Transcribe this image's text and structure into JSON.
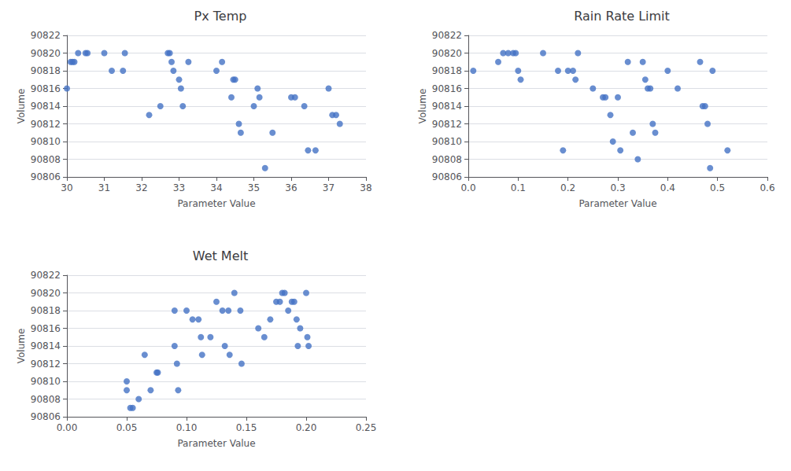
{
  "chart_data": [
    {
      "type": "scatter",
      "title": "Px Temp",
      "xlabel": "Parameter Value",
      "ylabel": "Volume",
      "color": "#4472C4",
      "grid": "y",
      "xlim": [
        30.0,
        38.0
      ],
      "ylim": [
        90806,
        90822
      ],
      "xticks": [
        30,
        31,
        32,
        33,
        34,
        35,
        36,
        37,
        38
      ],
      "yticks": [
        90806,
        90808,
        90810,
        90812,
        90814,
        90816,
        90818,
        90820,
        90822
      ],
      "x": [
        30.0,
        30.1,
        30.15,
        30.2,
        30.3,
        30.5,
        30.55,
        31.0,
        31.2,
        31.5,
        31.55,
        32.2,
        32.5,
        32.7,
        32.75,
        32.8,
        32.85,
        33.0,
        33.05,
        33.1,
        33.25,
        34.0,
        34.15,
        34.4,
        34.45,
        34.5,
        34.6,
        34.65,
        35.0,
        35.1,
        35.15,
        35.3,
        35.5,
        36.0,
        36.1,
        36.35,
        36.45,
        36.65,
        37.0,
        37.1,
        37.2,
        37.3
      ],
      "values": [
        90816,
        90819,
        90819,
        90819,
        90820,
        90820,
        90820,
        90820,
        90818,
        90818,
        90820,
        90813,
        90814,
        90820,
        90820,
        90819,
        90818,
        90817,
        90816,
        90814,
        90819,
        90818,
        90819,
        90815,
        90817,
        90817,
        90812,
        90811,
        90814,
        90816,
        90815,
        90807,
        90811,
        90815,
        90815,
        90814,
        90809,
        90809,
        90816,
        90813,
        90813,
        90812
      ]
    },
    {
      "type": "scatter",
      "title": "Rain Rate Limit",
      "xlabel": "Parameter Value",
      "ylabel": "Volume",
      "color": "#4472C4",
      "grid": "y",
      "xlim": [
        0.0,
        0.6
      ],
      "ylim": [
        90806,
        90822
      ],
      "xticks": [
        {
          "value": 0.0,
          "label": "0.0"
        },
        0.1,
        0.2,
        0.3,
        0.4,
        0.5,
        0.6
      ],
      "yticks": [
        90806,
        90808,
        90810,
        90812,
        90814,
        90816,
        90818,
        90820,
        90822
      ],
      "x": [
        0.01,
        0.06,
        0.07,
        0.08,
        0.09,
        0.095,
        0.1,
        0.105,
        0.15,
        0.18,
        0.19,
        0.2,
        0.21,
        0.215,
        0.22,
        0.25,
        0.27,
        0.275,
        0.285,
        0.29,
        0.3,
        0.305,
        0.32,
        0.33,
        0.34,
        0.35,
        0.355,
        0.36,
        0.365,
        0.37,
        0.375,
        0.4,
        0.42,
        0.465,
        0.47,
        0.475,
        0.48,
        0.485,
        0.49,
        0.52
      ],
      "values": [
        90818,
        90819,
        90820,
        90820,
        90820,
        90820,
        90818,
        90817,
        90820,
        90818,
        90809,
        90818,
        90818,
        90817,
        90820,
        90816,
        90815,
        90815,
        90813,
        90810,
        90815,
        90809,
        90819,
        90811,
        90808,
        90819,
        90817,
        90816,
        90816,
        90812,
        90811,
        90818,
        90816,
        90819,
        90814,
        90814,
        90812,
        90807,
        90818,
        90809
      ]
    },
    {
      "type": "scatter",
      "title": "Wet Melt",
      "xlabel": "Parameter Value",
      "ylabel": "Volume",
      "color": "#4472C4",
      "grid": "y",
      "xlim": [
        0.0,
        0.25
      ],
      "ylim": [
        90806,
        90822
      ],
      "xticks": [
        {
          "value": 0.0,
          "label": "0.00"
        },
        0.05,
        {
          "value": 0.1,
          "label": "0.10"
        },
        0.15,
        {
          "value": 0.2,
          "label": "0.20"
        },
        0.25
      ],
      "yticks": [
        90806,
        90808,
        90810,
        90812,
        90814,
        90816,
        90818,
        90820,
        90822
      ],
      "x": [
        0.05,
        0.05,
        0.053,
        0.055,
        0.06,
        0.065,
        0.07,
        0.075,
        0.076,
        0.09,
        0.09,
        0.092,
        0.093,
        0.1,
        0.105,
        0.11,
        0.112,
        0.113,
        0.12,
        0.125,
        0.13,
        0.132,
        0.135,
        0.136,
        0.14,
        0.145,
        0.146,
        0.16,
        0.165,
        0.17,
        0.175,
        0.178,
        0.18,
        0.182,
        0.185,
        0.188,
        0.19,
        0.192,
        0.193,
        0.195,
        0.2,
        0.201,
        0.202
      ],
      "values": [
        90810,
        90809,
        90807,
        90807,
        90808,
        90813,
        90809,
        90811,
        90811,
        90818,
        90814,
        90812,
        90809,
        90818,
        90817,
        90817,
        90815,
        90813,
        90815,
        90819,
        90818,
        90814,
        90818,
        90813,
        90820,
        90818,
        90812,
        90816,
        90815,
        90817,
        90819,
        90819,
        90820,
        90820,
        90818,
        90819,
        90819,
        90817,
        90814,
        90816,
        90820,
        90815,
        90814
      ]
    }
  ]
}
